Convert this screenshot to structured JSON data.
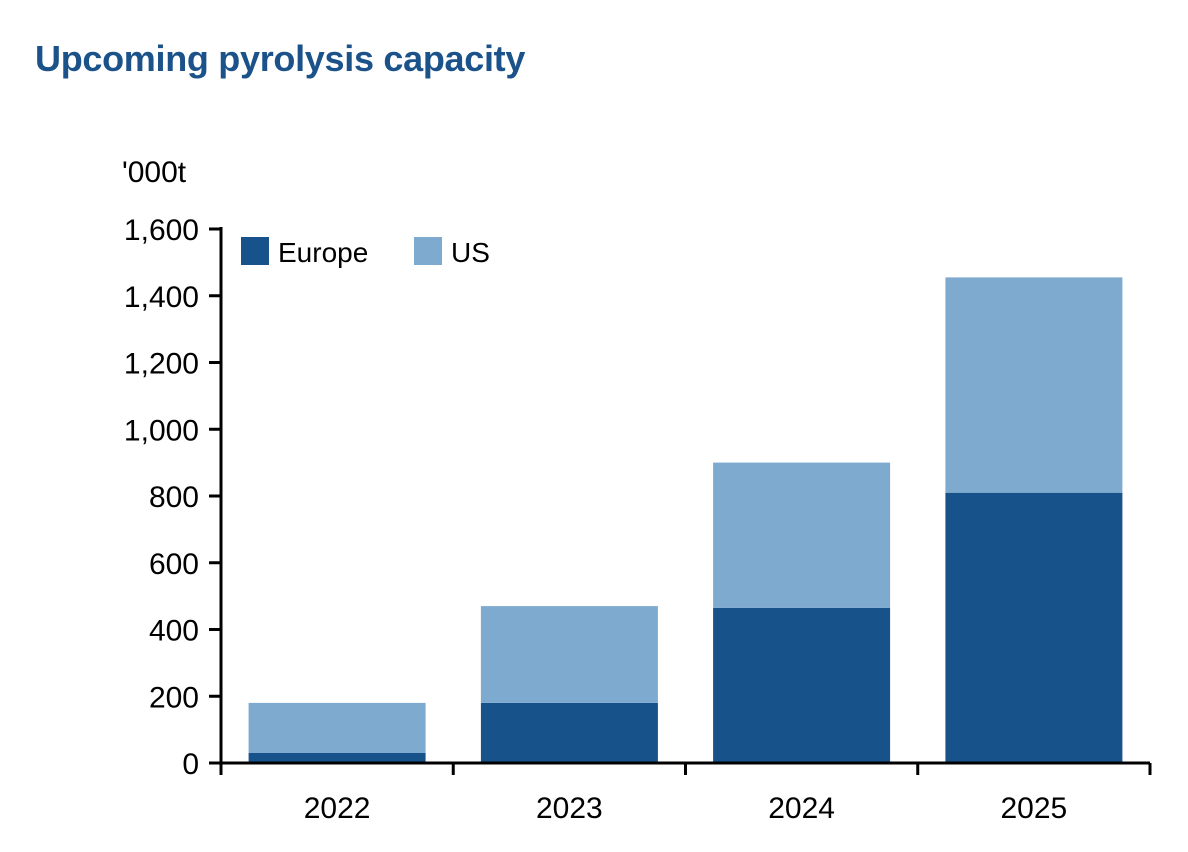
{
  "chart_data": {
    "type": "bar",
    "stacked": true,
    "title": "Upcoming pyrolysis capacity",
    "ylabel": "'000t",
    "xlabel": "",
    "categories": [
      "2022",
      "2023",
      "2024",
      "2025"
    ],
    "series": [
      {
        "name": "Europe",
        "color": "#18528b",
        "values": [
          30,
          180,
          465,
          810
        ]
      },
      {
        "name": "US",
        "color": "#7eaacf",
        "values": [
          150,
          290,
          435,
          645
        ]
      }
    ],
    "ylim": [
      0,
      1600
    ],
    "yticks": [
      0,
      200,
      400,
      600,
      800,
      1000,
      1200,
      1400,
      1600
    ],
    "ytick_labels": [
      "0",
      "200",
      "400",
      "600",
      "800",
      "1,000",
      "1,200",
      "1,400",
      "1,600"
    ],
    "grid": false,
    "legend_position": "top-left"
  }
}
